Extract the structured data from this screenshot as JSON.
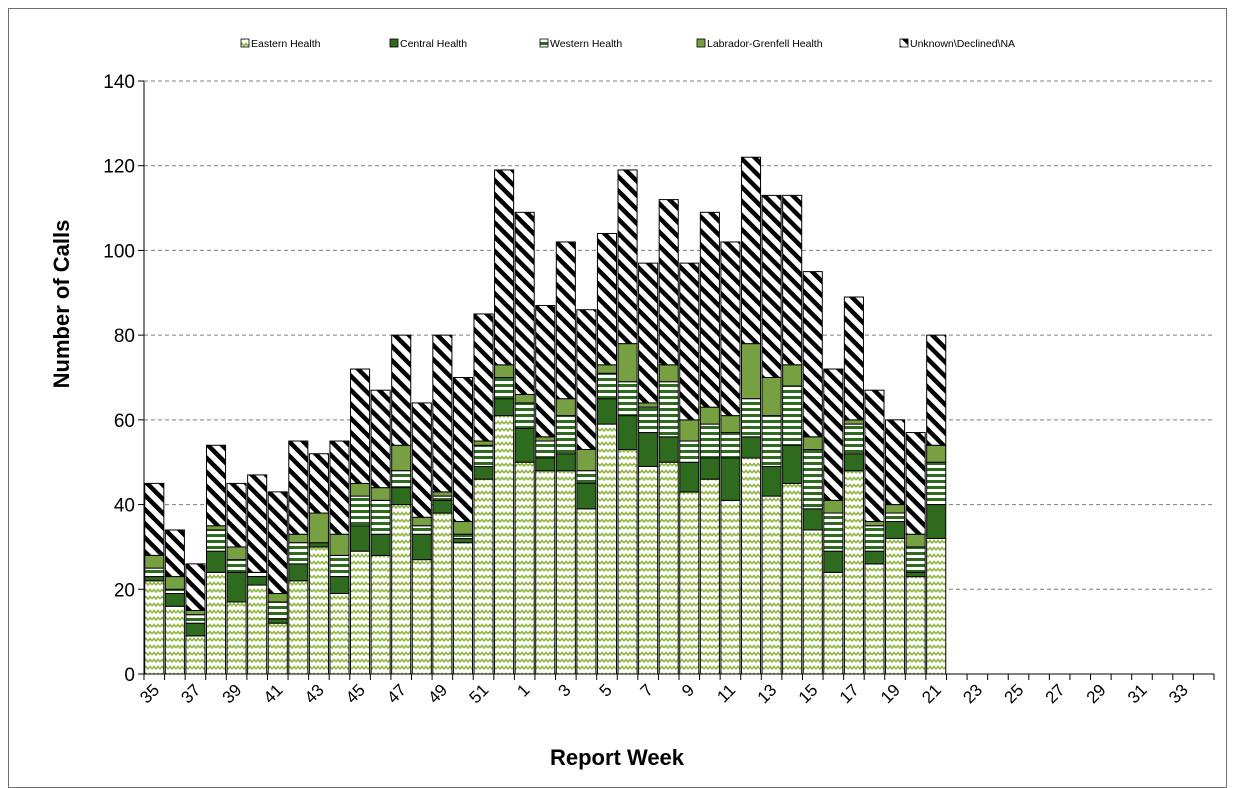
{
  "chart_data": {
    "type": "bar",
    "stacked": true,
    "title": "",
    "xlabel": "Report Week",
    "ylabel": "Number of Calls",
    "ylim": [
      0,
      140
    ],
    "y_ticks": [
      0,
      20,
      40,
      60,
      80,
      100,
      120,
      140
    ],
    "grid": "horizontal dashed",
    "legend_position": "top",
    "categories": [
      "35",
      "36",
      "37",
      "38",
      "39",
      "40",
      "41",
      "42",
      "43",
      "44",
      "45",
      "46",
      "47",
      "48",
      "49",
      "50",
      "51",
      "52",
      "1",
      "2",
      "3",
      "4",
      "5",
      "6",
      "7",
      "8",
      "9",
      "10",
      "11",
      "12",
      "13",
      "14",
      "15",
      "16",
      "17",
      "18",
      "19",
      "20",
      "21",
      "22",
      "23",
      "24",
      "25",
      "26",
      "27",
      "28",
      "29",
      "30",
      "31",
      "32",
      "33",
      "34"
    ],
    "series": [
      {
        "name": "Eastern Health",
        "color": "#8cb43c",
        "pattern": "zigzag",
        "values": [
          22,
          16,
          9,
          24,
          17,
          21,
          12,
          22,
          30,
          19,
          29,
          28,
          40,
          27,
          38,
          31,
          46,
          61,
          50,
          48,
          48,
          39,
          59,
          53,
          49,
          50,
          43,
          46,
          41,
          51,
          42,
          45,
          34,
          24,
          48,
          26,
          32,
          23,
          32,
          null,
          null,
          null,
          null,
          null,
          null,
          null,
          null,
          null,
          null,
          null,
          null,
          null
        ]
      },
      {
        "name": "Central Health",
        "color": "#2e6b1f",
        "pattern": "solid",
        "values": [
          1,
          3,
          3,
          5,
          7,
          2,
          1,
          4,
          1,
          4,
          6,
          5,
          4,
          6,
          3,
          1,
          3,
          4,
          8,
          3,
          4,
          6,
          6,
          8,
          8,
          6,
          7,
          5,
          10,
          5,
          7,
          9,
          5,
          5,
          4,
          3,
          4,
          1,
          8,
          null,
          null,
          null,
          null,
          null,
          null,
          null,
          null,
          null,
          null,
          null,
          null,
          null
        ]
      },
      {
        "name": "Western Health",
        "color": "#2e6b1f",
        "pattern": "horizontal-stripes",
        "values": [
          2,
          1,
          2,
          5,
          3,
          1,
          4,
          5,
          0,
          5,
          7,
          8,
          4,
          2,
          1,
          1,
          5,
          5,
          6,
          4,
          9,
          3,
          6,
          8,
          6,
          13,
          5,
          8,
          6,
          9,
          12,
          14,
          14,
          9,
          7,
          6,
          2,
          6,
          10,
          null,
          null,
          null,
          null,
          null,
          null,
          null,
          null,
          null,
          null,
          null,
          null,
          null
        ]
      },
      {
        "name": "Labrador-Grenfell Health",
        "color": "#77a042",
        "pattern": "solid",
        "values": [
          3,
          3,
          1,
          1,
          3,
          0,
          2,
          2,
          7,
          5,
          3,
          3,
          6,
          2,
          1,
          3,
          1,
          3,
          2,
          1,
          4,
          5,
          2,
          9,
          1,
          4,
          5,
          4,
          4,
          13,
          9,
          5,
          3,
          3,
          1,
          1,
          2,
          3,
          4,
          null,
          null,
          null,
          null,
          null,
          null,
          null,
          null,
          null,
          null,
          null,
          null,
          null
        ]
      },
      {
        "name": "Unknown\\Declined\\NA",
        "color": "#000000",
        "pattern": "diagonal-stripes",
        "values": [
          17,
          11,
          11,
          19,
          15,
          23,
          24,
          22,
          14,
          22,
          27,
          23,
          26,
          27,
          37,
          34,
          30,
          46,
          43,
          31,
          37,
          33,
          31,
          41,
          33,
          39,
          37,
          46,
          41,
          44,
          43,
          40,
          39,
          31,
          29,
          31,
          20,
          24,
          26,
          null,
          null,
          null,
          null,
          null,
          null,
          null,
          null,
          null,
          null,
          null,
          null,
          null
        ]
      }
    ]
  }
}
